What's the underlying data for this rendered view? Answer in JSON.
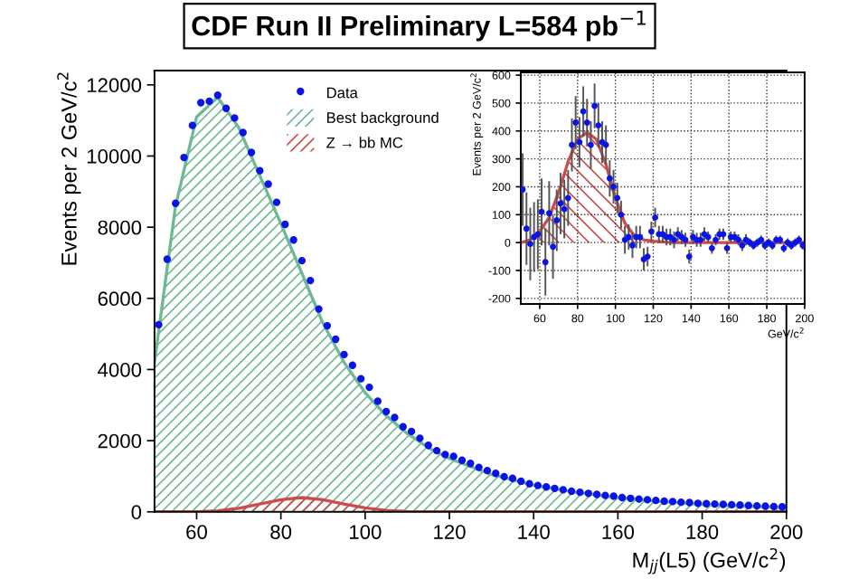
{
  "chart_data": [
    {
      "type": "area",
      "title": "CDF Run II Preliminary L=584 pb$^{−1}$",
      "xlabel": "M$_{jj}$(L5) (GeV/c$^{2}$)",
      "ylabel": "Events per 2 GeV/c$^{2}$",
      "xlim": [
        50,
        200
      ],
      "ylim": [
        0,
        12400
      ],
      "xticks": [
        60,
        80,
        100,
        120,
        140,
        160,
        180,
        200
      ],
      "yticks": [
        0,
        2000,
        4000,
        6000,
        8000,
        10000,
        12000
      ],
      "grid": false,
      "legend": "top",
      "series": [
        {
          "name": "Best background",
          "color": "#6fb894",
          "x": [
            50,
            55,
            60,
            65,
            70,
            75,
            80,
            85,
            90,
            95,
            100,
            105,
            110,
            115,
            120,
            130,
            140,
            150,
            160,
            170,
            180,
            190,
            200
          ],
          "values": [
            4200,
            8600,
            11100,
            11650,
            10800,
            9450,
            8100,
            6700,
            5300,
            4200,
            3350,
            2700,
            2200,
            1800,
            1500,
            1050,
            750,
            550,
            400,
            290,
            210,
            160,
            120
          ]
        },
        {
          "name": "Z → bb MC",
          "color": "#cc4b4b",
          "x": [
            50,
            60,
            65,
            70,
            75,
            80,
            85,
            90,
            95,
            100,
            105,
            110,
            115,
            200
          ],
          "values": [
            0,
            0,
            30,
            100,
            220,
            340,
            400,
            340,
            220,
            110,
            40,
            10,
            0,
            0
          ]
        },
        {
          "name": "Data",
          "type": "scatter",
          "color": "#0a14e6",
          "marker": "circle",
          "x": [
            51,
            53,
            55,
            57,
            59,
            61,
            63,
            65,
            67,
            69,
            71,
            73,
            75,
            77,
            79,
            81,
            83,
            85,
            87,
            89,
            91,
            93,
            95,
            97,
            99,
            101,
            103,
            105,
            107,
            109,
            111,
            113,
            115,
            117,
            119,
            121,
            123,
            125,
            127,
            129,
            131,
            133,
            135,
            137,
            139,
            141,
            143,
            145,
            147,
            149,
            151,
            153,
            155,
            157,
            159,
            161,
            163,
            165,
            167,
            169,
            171,
            173,
            175,
            177,
            179,
            181,
            183,
            185,
            187,
            189,
            191,
            193,
            195,
            197,
            199
          ],
          "values": [
            5260,
            7100,
            8670,
            9960,
            10860,
            11500,
            11540,
            11710,
            11340,
            11070,
            10660,
            10100,
            9590,
            9210,
            8700,
            8080,
            7640,
            7060,
            6500,
            5700,
            5230,
            4850,
            4420,
            4120,
            3740,
            3500,
            3110,
            2820,
            2650,
            2390,
            2260,
            2070,
            1870,
            1720,
            1610,
            1560,
            1450,
            1360,
            1250,
            1160,
            1080,
            990,
            940,
            860,
            790,
            740,
            700,
            660,
            620,
            580,
            550,
            520,
            490,
            460,
            440,
            400,
            380,
            360,
            340,
            320,
            300,
            290,
            270,
            260,
            240,
            230,
            220,
            210,
            200,
            190,
            180,
            170,
            160,
            150,
            140
          ]
        }
      ]
    },
    {
      "type": "area",
      "xlabel": "GeV/c$^{2}$",
      "ylabel": "Events per 2 GeV/c$^{2}$",
      "xlim": [
        50,
        200
      ],
      "ylim": [
        -220,
        610
      ],
      "xticks": [
        60,
        80,
        100,
        120,
        140,
        160,
        180,
        200
      ],
      "yticks": [
        -200,
        -100,
        0,
        100,
        200,
        300,
        400,
        500,
        600
      ],
      "grid": true,
      "series": [
        {
          "color": "#cc4b4b",
          "x": [
            50,
            55,
            60,
            65,
            70,
            75,
            80,
            85,
            90,
            95,
            100,
            105,
            110,
            115,
            120,
            130,
            150,
            200
          ],
          "values": [
            0,
            10,
            40,
            90,
            180,
            290,
            370,
            395,
            370,
            280,
            160,
            70,
            25,
            10,
            5,
            0,
            0,
            0
          ]
        },
        {
          "type": "scatter",
          "color": "#0a14e6",
          "marker": "circle",
          "x": [
            51,
            53,
            55,
            57,
            59,
            61,
            63,
            65,
            67,
            69,
            71,
            73,
            75,
            77,
            79,
            81,
            83,
            85,
            87,
            89,
            91,
            93,
            95,
            97,
            99,
            101,
            103,
            105,
            107,
            109,
            111,
            113,
            115,
            117,
            119,
            121,
            123,
            125,
            127,
            129,
            131,
            133,
            135,
            137,
            139,
            141,
            143,
            145,
            147,
            149,
            151,
            153,
            155,
            157,
            159,
            161,
            163,
            165,
            167,
            169,
            171,
            173,
            175,
            177,
            179,
            181,
            183,
            185,
            187,
            189,
            191,
            193,
            195,
            197,
            199
          ],
          "values": [
            190,
            50,
            -5,
            20,
            30,
            110,
            -70,
            105,
            -15,
            80,
            140,
            120,
            160,
            350,
            430,
            360,
            470,
            430,
            350,
            490,
            420,
            360,
            350,
            230,
            200,
            160,
            100,
            10,
            20,
            -10,
            20,
            20,
            -60,
            -50,
            40,
            90,
            30,
            30,
            20,
            20,
            10,
            30,
            20,
            10,
            -50,
            20,
            10,
            10,
            30,
            20,
            -20,
            10,
            30,
            30,
            -20,
            20,
            20,
            10,
            -10,
            10,
            0,
            -10,
            0,
            10,
            -10,
            0,
            -10,
            10,
            10,
            -20,
            0,
            -10,
            0,
            10,
            -10
          ],
          "errors": [
            130,
            130,
            130,
            125,
            125,
            120,
            120,
            115,
            115,
            110,
            110,
            105,
            100,
            95,
            95,
            90,
            90,
            85,
            85,
            80,
            80,
            75,
            70,
            65,
            60,
            55,
            50,
            50,
            45,
            45,
            40,
            40,
            40,
            35,
            35,
            35,
            30,
            30,
            30,
            30,
            30,
            25,
            25,
            25,
            25,
            25,
            25,
            25,
            25,
            20,
            20,
            20,
            20,
            20,
            20,
            20,
            20,
            20,
            20,
            20,
            15,
            15,
            15,
            15,
            15,
            15,
            15,
            15,
            15,
            15,
            15,
            15,
            15,
            15,
            15
          ]
        }
      ]
    }
  ]
}
